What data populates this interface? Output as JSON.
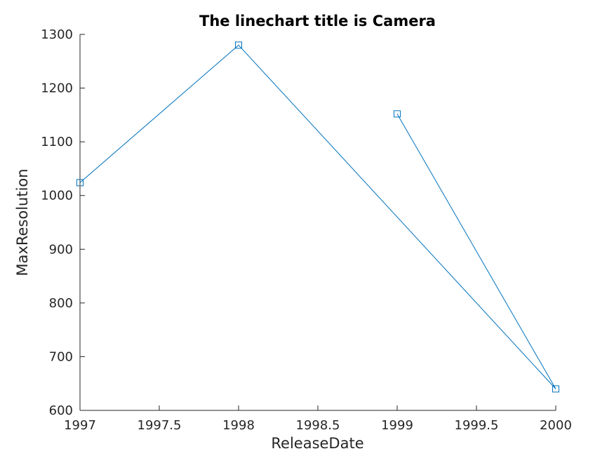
{
  "chart_data": {
    "type": "line",
    "title": "The linechart title is Camera",
    "xlabel": "ReleaseDate",
    "ylabel": "MaxResolution",
    "xlim": [
      1997,
      2000
    ],
    "ylim": [
      600,
      1300
    ],
    "xticks": [
      1997,
      1997.5,
      1998,
      1998.5,
      1999,
      1999.5,
      2000
    ],
    "yticks": [
      600,
      700,
      800,
      900,
      1000,
      1100,
      1200,
      1300
    ],
    "grid": false,
    "marker": "square",
    "color": "#0072BD",
    "series": [
      {
        "x": [
          1997,
          1998,
          2000,
          1999
        ],
        "y": [
          1024,
          1280,
          640,
          1152
        ]
      }
    ]
  }
}
